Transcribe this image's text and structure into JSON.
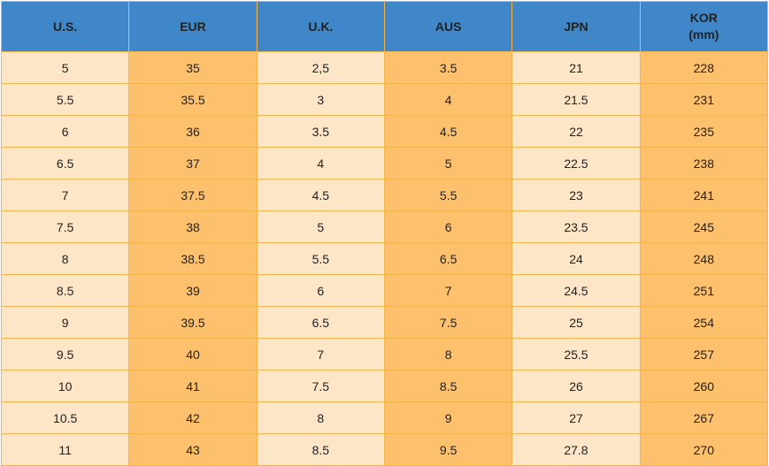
{
  "table": {
    "headers": [
      "U.S.",
      "EUR",
      "U.K.",
      "AUS",
      "JPN",
      "KOR\n(mm)"
    ],
    "rows": [
      [
        "5",
        "35",
        "2,5",
        "3.5",
        "21",
        "228"
      ],
      [
        "5.5",
        "35.5",
        "3",
        "4",
        "21.5",
        "231"
      ],
      [
        "6",
        "36",
        "3.5",
        "4.5",
        "22",
        "235"
      ],
      [
        "6.5",
        "37",
        "4",
        "5",
        "22.5",
        "238"
      ],
      [
        "7",
        "37.5",
        "4.5",
        "5.5",
        "23",
        "241"
      ],
      [
        "7.5",
        "38",
        "5",
        "6",
        "23.5",
        "245"
      ],
      [
        "8",
        "38.5",
        "5.5",
        "6.5",
        "24",
        "248"
      ],
      [
        "8.5",
        "39",
        "6",
        "7",
        "24.5",
        "251"
      ],
      [
        "9",
        "39.5",
        "6.5",
        "7.5",
        "25",
        "254"
      ],
      [
        "9.5",
        "40",
        "7",
        "8",
        "25.5",
        "257"
      ],
      [
        "10",
        "41",
        "7.5",
        "8.5",
        "26",
        "260"
      ],
      [
        "10.5",
        "42",
        "8",
        "9",
        "27",
        "267"
      ],
      [
        "11",
        "43",
        "8.5",
        "9.5",
        "27.8",
        "270"
      ]
    ]
  }
}
